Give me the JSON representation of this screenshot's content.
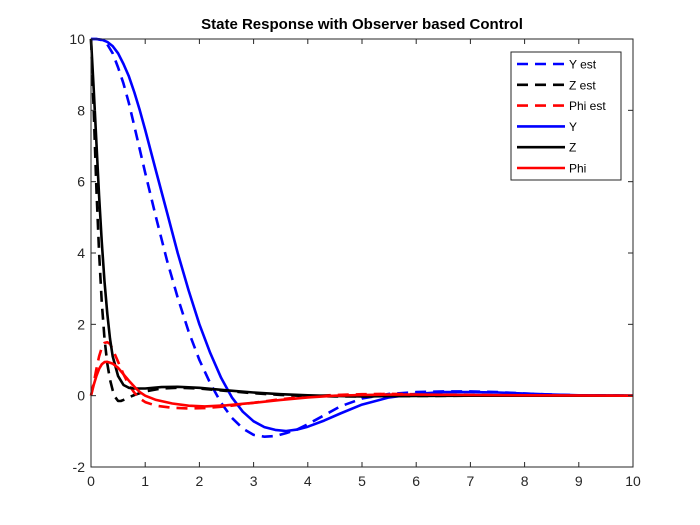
{
  "chart_data": {
    "type": "line",
    "title": "State Response with Observer based Control",
    "xlabel": "",
    "ylabel": "",
    "xlim": [
      0,
      10
    ],
    "ylim": [
      -2,
      10
    ],
    "x_ticks": [
      0,
      1,
      2,
      3,
      4,
      5,
      6,
      7,
      8,
      9,
      10
    ],
    "y_ticks": [
      -2,
      0,
      2,
      4,
      6,
      8,
      10
    ],
    "grid": false,
    "legend_position": "top-right",
    "series": [
      {
        "name": "Y est",
        "color": "#0000ff",
        "style": "dashed",
        "points": [
          [
            0,
            10
          ],
          [
            0.1,
            10
          ],
          [
            0.2,
            9.97
          ],
          [
            0.3,
            9.85
          ],
          [
            0.4,
            9.6
          ],
          [
            0.5,
            9.2
          ],
          [
            0.6,
            8.75
          ],
          [
            0.7,
            8.2
          ],
          [
            0.8,
            7.55
          ],
          [
            0.9,
            6.9
          ],
          [
            1,
            6.25
          ],
          [
            1.2,
            5
          ],
          [
            1.4,
            3.8
          ],
          [
            1.6,
            2.75
          ],
          [
            1.8,
            1.8
          ],
          [
            2,
            1
          ],
          [
            2.2,
            0.35
          ],
          [
            2.4,
            -0.2
          ],
          [
            2.6,
            -0.62
          ],
          [
            2.8,
            -0.92
          ],
          [
            3,
            -1.1
          ],
          [
            3.2,
            -1.15
          ],
          [
            3.4,
            -1.13
          ],
          [
            3.6,
            -1.05
          ],
          [
            3.8,
            -0.95
          ],
          [
            4,
            -0.8
          ],
          [
            4.3,
            -0.55
          ],
          [
            4.6,
            -0.3
          ],
          [
            5,
            -0.08
          ],
          [
            5.5,
            0.05
          ],
          [
            6,
            0.1
          ],
          [
            6.5,
            0.12
          ],
          [
            7,
            0.12
          ],
          [
            7.5,
            0.1
          ],
          [
            8,
            0.06
          ],
          [
            8.5,
            0.03
          ],
          [
            9,
            0.01
          ],
          [
            10,
            0
          ]
        ]
      },
      {
        "name": "Z est",
        "color": "#000000",
        "style": "dashed",
        "points": [
          [
            0,
            10
          ],
          [
            0.05,
            8
          ],
          [
            0.1,
            5.8
          ],
          [
            0.15,
            4
          ],
          [
            0.2,
            2.6
          ],
          [
            0.25,
            1.6
          ],
          [
            0.3,
            0.9
          ],
          [
            0.35,
            0.45
          ],
          [
            0.4,
            0.15
          ],
          [
            0.45,
            -0.05
          ],
          [
            0.5,
            -0.15
          ],
          [
            0.55,
            -0.15
          ],
          [
            0.6,
            -0.12
          ],
          [
            0.7,
            -0.05
          ],
          [
            0.8,
            0.02
          ],
          [
            1,
            0.12
          ],
          [
            1.3,
            0.2
          ],
          [
            1.6,
            0.22
          ],
          [
            2,
            0.2
          ],
          [
            2.5,
            0.13
          ],
          [
            3,
            0.07
          ],
          [
            3.5,
            0.02
          ],
          [
            4,
            -0.01
          ],
          [
            4.5,
            -0.02
          ],
          [
            5,
            -0.02
          ],
          [
            6,
            -0.01
          ],
          [
            7,
            0
          ],
          [
            8,
            0
          ],
          [
            10,
            0
          ]
        ]
      },
      {
        "name": "Phi est",
        "color": "#ff0000",
        "style": "dashed",
        "points": [
          [
            0,
            0
          ],
          [
            0.05,
            0.35
          ],
          [
            0.1,
            0.75
          ],
          [
            0.15,
            1.1
          ],
          [
            0.2,
            1.35
          ],
          [
            0.25,
            1.48
          ],
          [
            0.3,
            1.5
          ],
          [
            0.35,
            1.45
          ],
          [
            0.4,
            1.3
          ],
          [
            0.5,
            0.95
          ],
          [
            0.6,
            0.6
          ],
          [
            0.7,
            0.3
          ],
          [
            0.8,
            0.08
          ],
          [
            0.9,
            -0.08
          ],
          [
            1,
            -0.18
          ],
          [
            1.2,
            -0.28
          ],
          [
            1.5,
            -0.34
          ],
          [
            1.8,
            -0.36
          ],
          [
            2.1,
            -0.35
          ],
          [
            2.5,
            -0.3
          ],
          [
            3,
            -0.2
          ],
          [
            3.5,
            -0.1
          ],
          [
            4,
            -0.02
          ],
          [
            4.5,
            0.02
          ],
          [
            5,
            0.04
          ],
          [
            5.5,
            0.05
          ],
          [
            6,
            0.04
          ],
          [
            7,
            0.02
          ],
          [
            8,
            0.01
          ],
          [
            10,
            0
          ]
        ]
      },
      {
        "name": "Y",
        "color": "#0000ff",
        "style": "solid",
        "points": [
          [
            0,
            10
          ],
          [
            0.1,
            10
          ],
          [
            0.2,
            9.98
          ],
          [
            0.3,
            9.92
          ],
          [
            0.4,
            9.8
          ],
          [
            0.5,
            9.6
          ],
          [
            0.6,
            9.3
          ],
          [
            0.7,
            8.95
          ],
          [
            0.8,
            8.5
          ],
          [
            0.9,
            8
          ],
          [
            1,
            7.45
          ],
          [
            1.2,
            6.3
          ],
          [
            1.4,
            5.15
          ],
          [
            1.6,
            4
          ],
          [
            1.8,
            2.95
          ],
          [
            2,
            2
          ],
          [
            2.2,
            1.2
          ],
          [
            2.4,
            0.5
          ],
          [
            2.6,
            -0.05
          ],
          [
            2.8,
            -0.45
          ],
          [
            3,
            -0.72
          ],
          [
            3.2,
            -0.88
          ],
          [
            3.4,
            -0.96
          ],
          [
            3.6,
            -0.99
          ],
          [
            3.8,
            -0.95
          ],
          [
            4,
            -0.87
          ],
          [
            4.3,
            -0.7
          ],
          [
            4.6,
            -0.5
          ],
          [
            5,
            -0.25
          ],
          [
            5.5,
            -0.05
          ],
          [
            6,
            0.05
          ],
          [
            6.5,
            0.1
          ],
          [
            7,
            0.1
          ],
          [
            7.5,
            0.09
          ],
          [
            8,
            0.06
          ],
          [
            8.5,
            0.03
          ],
          [
            9,
            0.01
          ],
          [
            10,
            0
          ]
        ]
      },
      {
        "name": "Z",
        "color": "#000000",
        "style": "solid",
        "points": [
          [
            0,
            10
          ],
          [
            0.05,
            8.6
          ],
          [
            0.1,
            7.1
          ],
          [
            0.15,
            5.6
          ],
          [
            0.2,
            4.3
          ],
          [
            0.25,
            3.2
          ],
          [
            0.3,
            2.3
          ],
          [
            0.35,
            1.6
          ],
          [
            0.4,
            1.1
          ],
          [
            0.5,
            0.55
          ],
          [
            0.6,
            0.3
          ],
          [
            0.7,
            0.22
          ],
          [
            0.8,
            0.2
          ],
          [
            1,
            0.2
          ],
          [
            1.3,
            0.24
          ],
          [
            1.6,
            0.25
          ],
          [
            2,
            0.22
          ],
          [
            2.5,
            0.15
          ],
          [
            3,
            0.09
          ],
          [
            3.5,
            0.04
          ],
          [
            4,
            0.01
          ],
          [
            4.5,
            -0.01
          ],
          [
            5,
            -0.02
          ],
          [
            6,
            -0.01
          ],
          [
            7,
            0
          ],
          [
            8,
            0
          ],
          [
            10,
            0
          ]
        ]
      },
      {
        "name": "Phi",
        "color": "#ff0000",
        "style": "solid",
        "points": [
          [
            0,
            0
          ],
          [
            0.05,
            0.3
          ],
          [
            0.1,
            0.55
          ],
          [
            0.15,
            0.75
          ],
          [
            0.2,
            0.88
          ],
          [
            0.25,
            0.94
          ],
          [
            0.3,
            0.95
          ],
          [
            0.4,
            0.9
          ],
          [
            0.5,
            0.78
          ],
          [
            0.6,
            0.6
          ],
          [
            0.7,
            0.42
          ],
          [
            0.8,
            0.25
          ],
          [
            0.9,
            0.1
          ],
          [
            1,
            0
          ],
          [
            1.2,
            -0.12
          ],
          [
            1.5,
            -0.22
          ],
          [
            1.8,
            -0.28
          ],
          [
            2.1,
            -0.3
          ],
          [
            2.5,
            -0.27
          ],
          [
            3,
            -0.2
          ],
          [
            3.5,
            -0.12
          ],
          [
            4,
            -0.05
          ],
          [
            4.5,
            0
          ],
          [
            5,
            0.02
          ],
          [
            5.5,
            0.03
          ],
          [
            6,
            0.03
          ],
          [
            7,
            0.02
          ],
          [
            8,
            0.01
          ],
          [
            10,
            0
          ]
        ]
      }
    ]
  }
}
